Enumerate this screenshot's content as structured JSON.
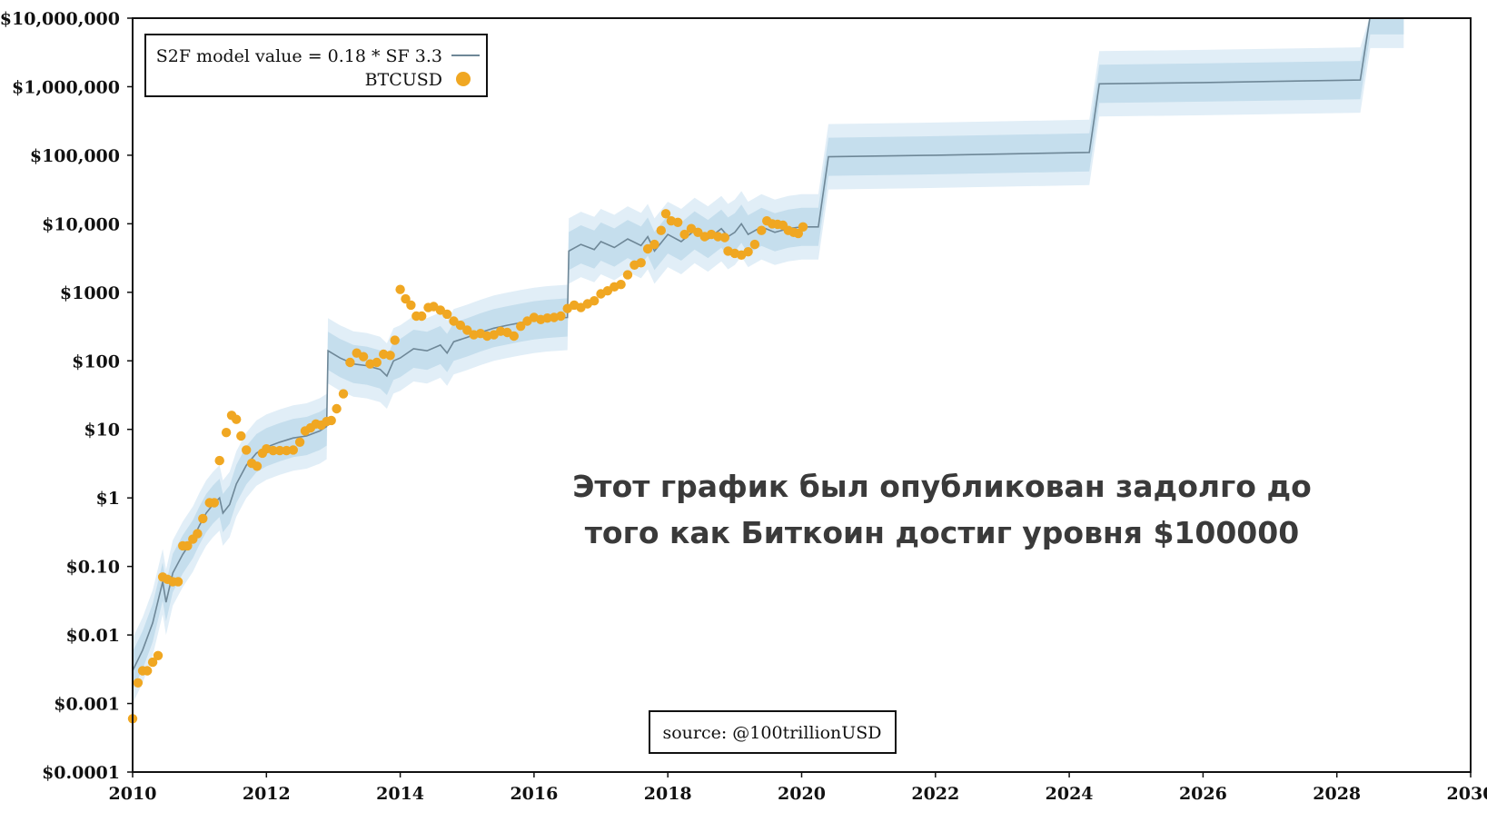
{
  "chart_data": {
    "type": "scatter",
    "y_scale": "log",
    "ylim": [
      0.0001,
      10000000
    ],
    "xlim": [
      2010,
      2030
    ],
    "grid": false,
    "legend_position": "top-left",
    "y_ticks": [
      {
        "value": 10000000,
        "label": "$10,000,000"
      },
      {
        "value": 1000000,
        "label": "$1,000,000"
      },
      {
        "value": 100000,
        "label": "$100,000"
      },
      {
        "value": 10000,
        "label": "$10,000"
      },
      {
        "value": 1000,
        "label": "$1000"
      },
      {
        "value": 100,
        "label": "$100"
      },
      {
        "value": 10,
        "label": "$10"
      },
      {
        "value": 1,
        "label": "$1"
      },
      {
        "value": 0.1,
        "label": "$0.10"
      },
      {
        "value": 0.01,
        "label": "$0.01"
      },
      {
        "value": 0.001,
        "label": "$0.001"
      },
      {
        "value": 0.0001,
        "label": "$0.0001"
      }
    ],
    "x_ticks": [
      {
        "value": 2010,
        "label": "2010"
      },
      {
        "value": 2012,
        "label": "2012"
      },
      {
        "value": 2014,
        "label": "2014"
      },
      {
        "value": 2016,
        "label": "2016"
      },
      {
        "value": 2018,
        "label": "2018"
      },
      {
        "value": 2020,
        "label": "2020"
      },
      {
        "value": 2022,
        "label": "2022"
      },
      {
        "value": 2024,
        "label": "2024"
      },
      {
        "value": 2026,
        "label": "2026"
      },
      {
        "value": 2028,
        "label": "2028"
      },
      {
        "value": 2030,
        "label": "2030"
      }
    ],
    "series": [
      {
        "name": "S2F model value = 0.18 * SF 3.3",
        "kind": "line",
        "color": "#6e8797",
        "band_color": "#c5deed",
        "band_outer_color": "#e1eef7",
        "points": [
          [
            2010.0,
            0.003
          ],
          [
            2010.15,
            0.006
          ],
          [
            2010.3,
            0.015
          ],
          [
            2010.45,
            0.06
          ],
          [
            2010.5,
            0.03
          ],
          [
            2010.6,
            0.08
          ],
          [
            2010.75,
            0.15
          ],
          [
            2010.9,
            0.25
          ],
          [
            2011.0,
            0.4
          ],
          [
            2011.1,
            0.6
          ],
          [
            2011.2,
            0.8
          ],
          [
            2011.3,
            1.0
          ],
          [
            2011.35,
            0.6
          ],
          [
            2011.45,
            0.8
          ],
          [
            2011.55,
            1.6
          ],
          [
            2011.7,
            3.0
          ],
          [
            2011.85,
            4.5
          ],
          [
            2012.0,
            5.5
          ],
          [
            2012.2,
            6.5
          ],
          [
            2012.4,
            7.5
          ],
          [
            2012.6,
            8.0
          ],
          [
            2012.8,
            9.5
          ],
          [
            2012.9,
            11.0
          ],
          [
            2012.92,
            140.0
          ],
          [
            2013.1,
            110.0
          ],
          [
            2013.3,
            90.0
          ],
          [
            2013.5,
            85.0
          ],
          [
            2013.7,
            75.0
          ],
          [
            2013.8,
            60.0
          ],
          [
            2013.9,
            100.0
          ],
          [
            2014.0,
            110.0
          ],
          [
            2014.2,
            150.0
          ],
          [
            2014.4,
            140.0
          ],
          [
            2014.6,
            170.0
          ],
          [
            2014.7,
            130.0
          ],
          [
            2014.8,
            190.0
          ],
          [
            2015.0,
            220.0
          ],
          [
            2015.2,
            260.0
          ],
          [
            2015.4,
            300.0
          ],
          [
            2015.6,
            330.0
          ],
          [
            2015.8,
            360.0
          ],
          [
            2016.0,
            390.0
          ],
          [
            2016.2,
            410.0
          ],
          [
            2016.5,
            430.0
          ],
          [
            2016.52,
            4000.0
          ],
          [
            2016.7,
            5000.0
          ],
          [
            2016.9,
            4200.0
          ],
          [
            2017.0,
            5500.0
          ],
          [
            2017.2,
            4500.0
          ],
          [
            2017.4,
            6000.0
          ],
          [
            2017.6,
            4800.0
          ],
          [
            2017.7,
            6500.0
          ],
          [
            2017.8,
            4000.0
          ],
          [
            2018.0,
            7000.0
          ],
          [
            2018.2,
            5500.0
          ],
          [
            2018.4,
            8000.0
          ],
          [
            2018.6,
            6000.0
          ],
          [
            2018.8,
            8500.0
          ],
          [
            2018.9,
            6500.0
          ],
          [
            2019.0,
            7500.0
          ],
          [
            2019.1,
            10000.0
          ],
          [
            2019.2,
            7000.0
          ],
          [
            2019.4,
            9000.0
          ],
          [
            2019.6,
            7500.0
          ],
          [
            2019.8,
            8500.0
          ],
          [
            2020.0,
            9000.0
          ],
          [
            2020.25,
            9000.0
          ],
          [
            2020.4,
            95000.0
          ],
          [
            2022.0,
            100000.0
          ],
          [
            2024.3,
            110000.0
          ],
          [
            2024.45,
            1100000.0
          ],
          [
            2026.0,
            1150000.0
          ],
          [
            2028.35,
            1250000.0
          ],
          [
            2028.5,
            11000000.0
          ],
          [
            2029.0,
            11000000.0
          ]
        ]
      },
      {
        "name": "BTCUSD",
        "kind": "scatter",
        "color": "#f0a722",
        "points": [
          [
            2010.0,
            0.0006
          ],
          [
            2010.08,
            0.002
          ],
          [
            2010.15,
            0.003
          ],
          [
            2010.22,
            0.003
          ],
          [
            2010.3,
            0.004
          ],
          [
            2010.38,
            0.005
          ],
          [
            2010.45,
            0.07
          ],
          [
            2010.52,
            0.065
          ],
          [
            2010.6,
            0.06
          ],
          [
            2010.68,
            0.06
          ],
          [
            2010.75,
            0.2
          ],
          [
            2010.82,
            0.2
          ],
          [
            2010.9,
            0.25
          ],
          [
            2010.97,
            0.3
          ],
          [
            2011.05,
            0.5
          ],
          [
            2011.15,
            0.85
          ],
          [
            2011.22,
            0.85
          ],
          [
            2011.3,
            3.5
          ],
          [
            2011.4,
            9.0
          ],
          [
            2011.48,
            16.0
          ],
          [
            2011.55,
            14.0
          ],
          [
            2011.62,
            8.0
          ],
          [
            2011.7,
            5.0
          ],
          [
            2011.78,
            3.2
          ],
          [
            2011.86,
            2.9
          ],
          [
            2011.94,
            4.5
          ],
          [
            2012.0,
            5.2
          ],
          [
            2012.1,
            4.9
          ],
          [
            2012.2,
            4.9
          ],
          [
            2012.3,
            4.9
          ],
          [
            2012.4,
            5.0
          ],
          [
            2012.5,
            6.5
          ],
          [
            2012.58,
            9.5
          ],
          [
            2012.66,
            10.5
          ],
          [
            2012.74,
            12.0
          ],
          [
            2012.82,
            11.5
          ],
          [
            2012.9,
            13.0
          ],
          [
            2012.97,
            13.5
          ],
          [
            2013.05,
            20.0
          ],
          [
            2013.15,
            33.0
          ],
          [
            2013.25,
            95.0
          ],
          [
            2013.35,
            130.0
          ],
          [
            2013.45,
            115.0
          ],
          [
            2013.55,
            90.0
          ],
          [
            2013.65,
            95.0
          ],
          [
            2013.75,
            125.0
          ],
          [
            2013.85,
            120.0
          ],
          [
            2013.92,
            200.0
          ],
          [
            2014.0,
            1100.0
          ],
          [
            2014.08,
            800.0
          ],
          [
            2014.16,
            650.0
          ],
          [
            2014.24,
            450.0
          ],
          [
            2014.32,
            450.0
          ],
          [
            2014.42,
            600.0
          ],
          [
            2014.5,
            620.0
          ],
          [
            2014.6,
            550.0
          ],
          [
            2014.7,
            480.0
          ],
          [
            2014.8,
            380.0
          ],
          [
            2014.9,
            330.0
          ],
          [
            2015.0,
            280.0
          ],
          [
            2015.1,
            240.0
          ],
          [
            2015.2,
            250.0
          ],
          [
            2015.3,
            230.0
          ],
          [
            2015.4,
            240.0
          ],
          [
            2015.5,
            270.0
          ],
          [
            2015.6,
            260.0
          ],
          [
            2015.7,
            230.0
          ],
          [
            2015.8,
            320.0
          ],
          [
            2015.9,
            380.0
          ],
          [
            2016.0,
            430.0
          ],
          [
            2016.1,
            400.0
          ],
          [
            2016.2,
            420.0
          ],
          [
            2016.3,
            430.0
          ],
          [
            2016.4,
            450.0
          ],
          [
            2016.5,
            580.0
          ],
          [
            2016.6,
            650.0
          ],
          [
            2016.7,
            600.0
          ],
          [
            2016.8,
            680.0
          ],
          [
            2016.9,
            750.0
          ],
          [
            2017.0,
            950.0
          ],
          [
            2017.1,
            1050.0
          ],
          [
            2017.2,
            1200.0
          ],
          [
            2017.3,
            1300.0
          ],
          [
            2017.4,
            1800.0
          ],
          [
            2017.5,
            2500.0
          ],
          [
            2017.6,
            2700.0
          ],
          [
            2017.7,
            4300.0
          ],
          [
            2017.8,
            5000.0
          ],
          [
            2017.9,
            8000.0
          ],
          [
            2017.97,
            14000.0
          ],
          [
            2018.05,
            11000.0
          ],
          [
            2018.15,
            10500.0
          ],
          [
            2018.25,
            7000.0
          ],
          [
            2018.35,
            8500.0
          ],
          [
            2018.45,
            7500.0
          ],
          [
            2018.55,
            6500.0
          ],
          [
            2018.65,
            7000.0
          ],
          [
            2018.75,
            6500.0
          ],
          [
            2018.85,
            6300.0
          ],
          [
            2018.9,
            4000.0
          ],
          [
            2019.0,
            3700.0
          ],
          [
            2019.1,
            3500.0
          ],
          [
            2019.2,
            3900.0
          ],
          [
            2019.3,
            5000.0
          ],
          [
            2019.4,
            8000.0
          ],
          [
            2019.48,
            11000.0
          ],
          [
            2019.56,
            10000.0
          ],
          [
            2019.64,
            9800.0
          ],
          [
            2019.72,
            9500.0
          ],
          [
            2019.8,
            8000.0
          ],
          [
            2019.88,
            7500.0
          ],
          [
            2019.95,
            7200.0
          ],
          [
            2020.02,
            9000.0
          ]
        ]
      }
    ],
    "annotation": "Этот график был опубликован задолго до того  как Биткоин достиг уровня $100000",
    "annotation_lines": [
      "Этот график был опубликован задолго до",
      "того  как Биткоин достиг уровня $100000"
    ],
    "legend_entries": [
      "S2F model value = 0.18 * SF 3.3",
      "BTCUSD"
    ],
    "source_label": "source: @100trillionUSD"
  }
}
